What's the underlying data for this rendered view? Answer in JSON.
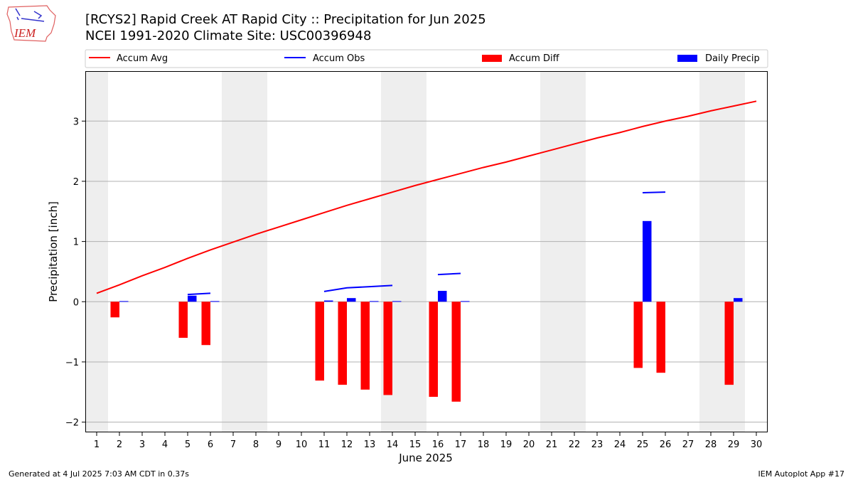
{
  "title_line1": "[RCYS2] Rapid Creek  AT Rapid City :: Precipitation for Jun 2025",
  "title_line2": "NCEI 1991-2020 Climate Site: USC00396948",
  "footer_left": "Generated at 4 Jul 2025 7:03 AM CDT in 0.37s",
  "footer_right": "IEM Autoplot App #17",
  "logo_text": "IEM",
  "chart_data": {
    "type": "bar",
    "xlabel": "June 2025",
    "ylabel": "Precipitation [inch]",
    "xlim": [
      0.5,
      30.5
    ],
    "ylim": [
      -2.17,
      3.83
    ],
    "yticks": [
      -2,
      -1,
      0,
      1,
      2,
      3
    ],
    "xticks": [
      1,
      2,
      3,
      4,
      5,
      6,
      7,
      8,
      9,
      10,
      11,
      12,
      13,
      14,
      15,
      16,
      17,
      18,
      19,
      20,
      21,
      22,
      23,
      24,
      25,
      26,
      27,
      28,
      29,
      30
    ],
    "grid": "horizontal",
    "legend": "top",
    "weekends": [
      [
        0.5,
        1.5
      ],
      [
        6.5,
        8.5
      ],
      [
        13.5,
        15.5
      ],
      [
        20.5,
        22.5
      ],
      [
        27.5,
        29.5
      ]
    ],
    "colors": {
      "avg": "#ff0000",
      "obs": "#0000ff",
      "diff": "#ff0000",
      "precip": "#0000ff",
      "weekend": "#eeeeee",
      "grid": "#b0b0b0"
    },
    "series": [
      {
        "name": "Accum Avg",
        "type": "line",
        "x": [
          1,
          2,
          3,
          4,
          5,
          6,
          7,
          8,
          9,
          10,
          11,
          12,
          13,
          14,
          15,
          16,
          17,
          18,
          19,
          20,
          21,
          22,
          23,
          24,
          25,
          26,
          27,
          28,
          29,
          30
        ],
        "values": [
          0.14,
          0.28,
          0.43,
          0.57,
          0.72,
          0.86,
          0.99,
          1.12,
          1.24,
          1.36,
          1.48,
          1.6,
          1.71,
          1.82,
          1.93,
          2.03,
          2.13,
          2.23,
          2.32,
          2.42,
          2.52,
          2.62,
          2.72,
          2.81,
          2.91,
          3.0,
          3.08,
          3.17,
          3.25,
          3.33
        ]
      },
      {
        "name": "Accum Obs",
        "type": "line",
        "segments": [
          [
            [
              5,
              0.12
            ],
            [
              6,
              0.14
            ]
          ],
          [
            [
              11,
              0.17
            ],
            [
              12,
              0.23
            ],
            [
              13,
              0.25
            ],
            [
              14,
              0.27
            ]
          ],
          [
            [
              16,
              0.45
            ],
            [
              17,
              0.47
            ]
          ],
          [
            [
              25,
              1.81
            ],
            [
              26,
              1.82
            ]
          ]
        ]
      },
      {
        "name": "Accum Diff",
        "type": "bar",
        "x": [
          2,
          5,
          6,
          11,
          12,
          13,
          14,
          16,
          17,
          25,
          26,
          29
        ],
        "values": [
          -0.26,
          -0.6,
          -0.72,
          -1.31,
          -1.38,
          -1.46,
          -1.55,
          -1.58,
          -1.66,
          -1.1,
          -1.18,
          -1.38
        ]
      },
      {
        "name": "Daily Precip",
        "type": "bar",
        "x": [
          2,
          5,
          6,
          11,
          12,
          13,
          14,
          16,
          17,
          25,
          29
        ],
        "values": [
          0.01,
          0.1,
          0.01,
          0.02,
          0.06,
          0.01,
          0.01,
          0.18,
          0.01,
          1.34,
          0.06
        ]
      }
    ]
  }
}
